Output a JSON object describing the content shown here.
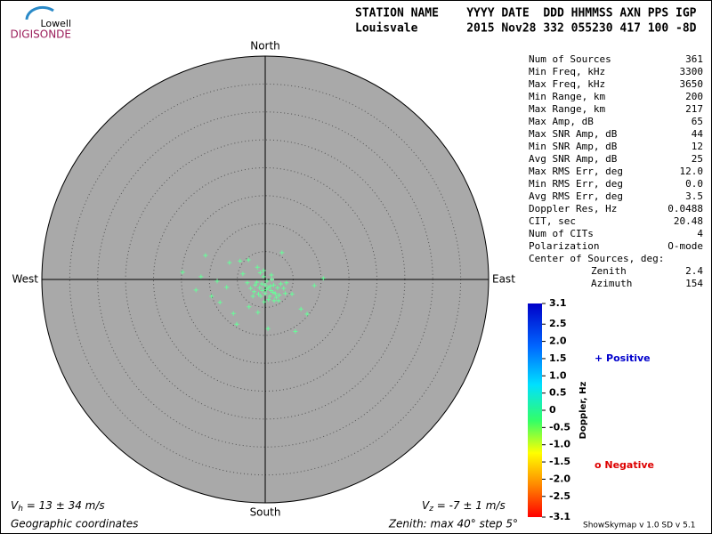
{
  "logo": {
    "top": "Lowell",
    "bottom": "DIGISONDE"
  },
  "header": {
    "line1": "STATION NAME    YYYY DATE  DDD HHMMSS AXN PPS IGP",
    "line2": "Louisvale       2015 Nov28 332 055230 417 100 -8D"
  },
  "stats": {
    "rows": [
      [
        "Num of Sources",
        "361"
      ],
      [
        "Min Freq, kHz",
        "3300"
      ],
      [
        "Max Freq, kHz",
        "3650"
      ],
      [
        "Min Range, km",
        "200"
      ],
      [
        "Max Range, km",
        "217"
      ],
      [
        "Max Amp, dB",
        "65"
      ],
      [
        "Max SNR Amp, dB",
        "44"
      ],
      [
        "Min SNR Amp, dB",
        "12"
      ],
      [
        "Avg SNR Amp, dB",
        "25"
      ],
      [
        "Max RMS Err, deg",
        "12.0"
      ],
      [
        "Min RMS Err, deg",
        "0.0"
      ],
      [
        "Avg RMS Err, deg",
        "3.5"
      ],
      [
        "Doppler Res, Hz",
        "0.0488"
      ],
      [
        "CIT, sec",
        "20.48"
      ],
      [
        "Num of CITs",
        "4"
      ],
      [
        "Polarization",
        "O-mode"
      ]
    ],
    "center_title": "Center of Sources, deg:",
    "center_rows": [
      [
        "Zenith",
        "2.4"
      ],
      [
        "Azimuth",
        "154"
      ]
    ]
  },
  "plot": {
    "north": "North",
    "south": "South",
    "east": "East",
    "west": "West",
    "zenith_max": 40,
    "zenith_step": 5,
    "color": "#66ff99",
    "points": {
      "x": [
        -14.8,
        -10.7,
        -6.4,
        -4.5,
        3.0,
        10.4,
        8.8,
        6.4,
        7.5,
        5.4,
        0.5,
        -5.1,
        -5.7,
        -8.1,
        -9.6,
        -12.4,
        -11.5,
        -8.6,
        -6.9,
        -2.9,
        -1.3,
        -0.3,
        -4.0,
        3.8,
        4.8,
        2.4,
        -3.0,
        -1.4,
        0.0,
        0.5,
        1.0,
        -0.5,
        1.5,
        -1.0,
        0.0,
        0.8,
        -0.8,
        1.8,
        2.2,
        -1.5,
        0.3,
        1.2,
        -0.3,
        2.5,
        -2.0,
        0.6,
        -0.2,
        1.6,
        -1.8,
        2.8,
        -2.6,
        0.9,
        -0.6,
        1.4,
        -1.2,
        0.2,
        2.0,
        -2.2,
        3.3,
        -3.2,
        1.1,
        -0.9,
        3.6
      ],
      "y": [
        1.3,
        4.3,
        3.0,
        3.3,
        4.8,
        0.2,
        -1.1,
        -5.3,
        -6.2,
        -9.3,
        -8.8,
        -8.0,
        -6.1,
        -4.1,
        -3.0,
        -1.9,
        0.5,
        -0.3,
        -1.4,
        -4.9,
        -5.9,
        1.6,
        1.0,
        -0.6,
        -2.6,
        -3.8,
        3.5,
        2.2,
        -1.0,
        -1.5,
        -2.0,
        -2.0,
        -1.0,
        -1.5,
        -2.5,
        -3.0,
        -3.0,
        -2.5,
        -1.5,
        -0.5,
        -0.3,
        0.0,
        0.5,
        -2.8,
        -2.2,
        -3.6,
        -4.0,
        -3.8,
        -1.0,
        -0.8,
        -1.6,
        -1.2,
        -0.8,
        -2.3,
        -2.6,
        -1.8,
        -3.2,
        -3.0,
        -1.6,
        -0.6,
        0.8,
        1.2,
        -2.5
      ]
    }
  },
  "colorbar": {
    "label": "Doppler, Hz",
    "lim": [
      -3.1,
      3.1
    ],
    "ticks": [
      3.1,
      2.5,
      {
        "value": 2,
        "label": "2.0"
      },
      1.5,
      {
        "value": 1,
        "label": "1.0"
      },
      0.5,
      0,
      -0.5,
      {
        "value": -1,
        "label": "-1.0"
      },
      -1.5,
      {
        "value": -2,
        "label": "-2.0"
      },
      -2.5,
      -3.1
    ],
    "positive": "+ Positive",
    "negative": "o Negative"
  },
  "footer": {
    "vh": {
      "v": "V",
      "sub": "h",
      "rest": " = 13 ± 34 m/s"
    },
    "vz": {
      "v": "V",
      "sub": "z",
      "rest": " = -7 ± 1 m/s"
    },
    "coords": "Geographic coordinates",
    "zenith": "Zenith: max 40°  step 5°",
    "version": "ShowSkymap v 1.0  SD v 5.1"
  }
}
